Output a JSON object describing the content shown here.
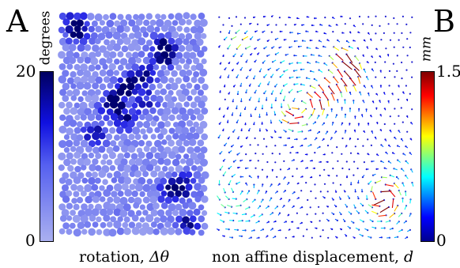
{
  "panel_a": {
    "letter": "A",
    "colorbar": {
      "unit": "degrees",
      "max_label": "20",
      "min_label": "0",
      "low_color": "#aab0f0",
      "high_color": "#000060"
    },
    "caption_text": "rotation, ",
    "caption_symbol": "Δθ"
  },
  "panel_b": {
    "letter": "B",
    "colorbar": {
      "unit": "mm",
      "max_label": "1.5",
      "min_label": "0",
      "stops": [
        "#00008f",
        "#0000ff",
        "#00ffff",
        "#ffff00",
        "#ff0000",
        "#800000"
      ]
    },
    "caption_text": "non affine displacement, ",
    "caption_symbol": "d"
  }
}
